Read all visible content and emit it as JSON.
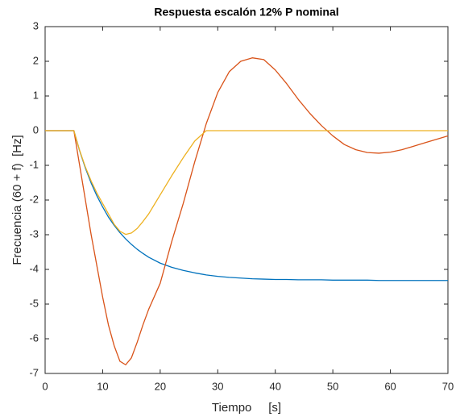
{
  "chart_data": {
    "type": "line",
    "title": "Respuesta escalón 12% P nominal",
    "x_label": "Tiempo     [s]",
    "y_label": "Frecuencia (60 + f)  [Hz]",
    "x": [
      0,
      5,
      6,
      7,
      8,
      9,
      10,
      11,
      12,
      13,
      14,
      15,
      16,
      17,
      18,
      20,
      22,
      24,
      26,
      28,
      30,
      32,
      34,
      36,
      38,
      40,
      42,
      44,
      46,
      48,
      50,
      52,
      54,
      56,
      58,
      60,
      62,
      64,
      66,
      68,
      70
    ],
    "series": [
      {
        "color": "#0072bd",
        "values": [
          0,
          0,
          -0.58,
          -1.08,
          -1.51,
          -1.88,
          -2.2,
          -2.49,
          -2.73,
          -2.94,
          -3.12,
          -3.28,
          -3.42,
          -3.54,
          -3.65,
          -3.82,
          -3.94,
          -4.03,
          -4.1,
          -4.16,
          -4.2,
          -4.23,
          -4.25,
          -4.27,
          -4.28,
          -4.29,
          -4.29,
          -4.3,
          -4.3,
          -4.3,
          -4.31,
          -4.31,
          -4.31,
          -4.31,
          -4.32,
          -4.32,
          -4.32,
          -4.32,
          -4.32,
          -4.32,
          -4.32
        ]
      },
      {
        "color": "#d95319",
        "values": [
          0,
          0,
          -1.0,
          -2.0,
          -3.0,
          -3.9,
          -4.8,
          -5.6,
          -6.2,
          -6.65,
          -6.75,
          -6.55,
          -6.1,
          -5.6,
          -5.15,
          -4.4,
          -3.2,
          -2.1,
          -0.9,
          0.2,
          1.1,
          1.7,
          2.0,
          2.1,
          2.05,
          1.75,
          1.35,
          0.9,
          0.5,
          0.15,
          -0.15,
          -0.4,
          -0.55,
          -0.63,
          -0.65,
          -0.62,
          -0.55,
          -0.45,
          -0.35,
          -0.25,
          -0.15
        ]
      },
      {
        "color": "#edb120",
        "values": [
          0,
          0,
          -0.57,
          -1.05,
          -1.45,
          -1.8,
          -2.1,
          -2.4,
          -2.7,
          -2.9,
          -2.99,
          -2.95,
          -2.82,
          -2.62,
          -2.4,
          -1.85,
          -1.3,
          -0.78,
          -0.3,
          0,
          0,
          0,
          0,
          0,
          0,
          0,
          0,
          0,
          0,
          0,
          0,
          0,
          0,
          0,
          0,
          0,
          0,
          0,
          0,
          0,
          0
        ]
      }
    ],
    "xlim": [
      0,
      70
    ],
    "xticks": [
      0,
      10,
      20,
      30,
      40,
      50,
      60,
      70
    ],
    "ylim": [
      -7,
      3
    ],
    "yticks": [
      -7,
      -6,
      -5,
      -4,
      -3,
      -2,
      -1,
      0,
      1,
      2,
      3
    ]
  }
}
